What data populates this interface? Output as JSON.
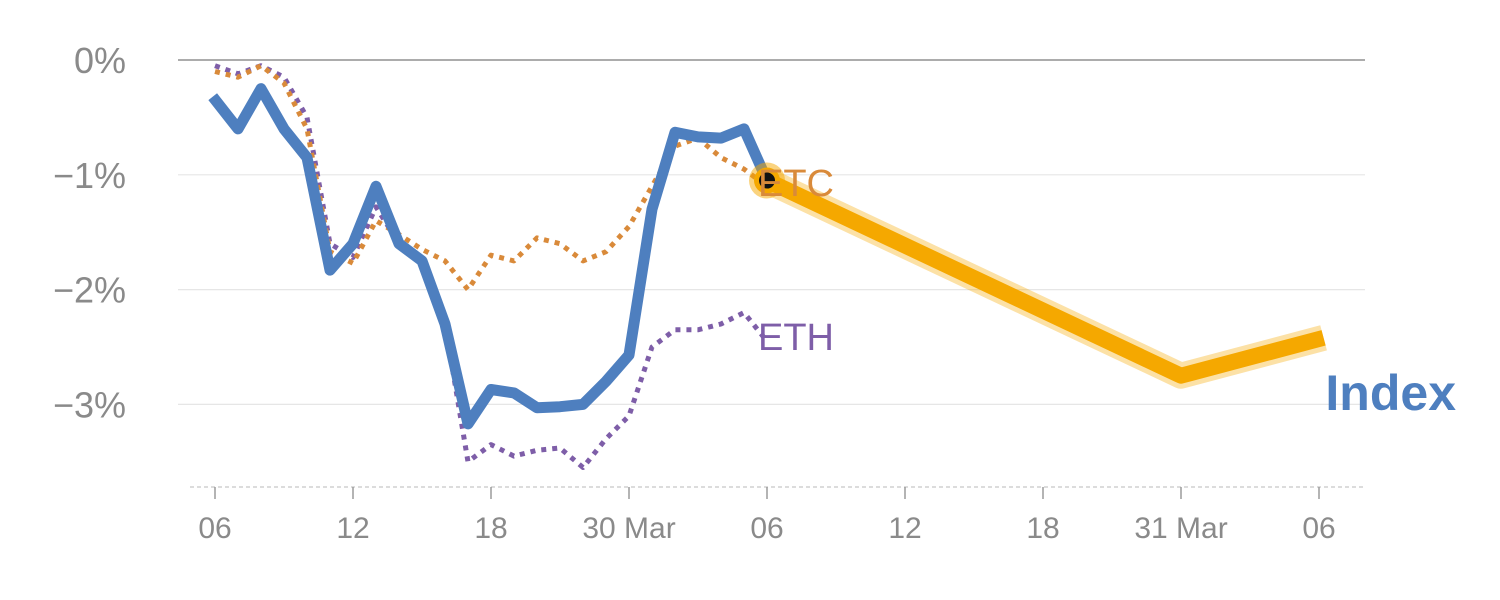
{
  "chart_data": {
    "type": "line",
    "title": "",
    "xlabel": "",
    "ylabel": "",
    "ylim": [
      -3.7,
      0
    ],
    "grid": true,
    "y_ticks": [
      {
        "value": 0,
        "label": "0%"
      },
      {
        "value": -1,
        "label": "−1%"
      },
      {
        "value": -2,
        "label": "−2%"
      },
      {
        "value": -3,
        "label": "−3%"
      }
    ],
    "x_ticks": [
      {
        "x": 0,
        "label": "06"
      },
      {
        "x": 6,
        "label": "12"
      },
      {
        "x": 12,
        "label": "18"
      },
      {
        "x": 18,
        "label": "30 Mar"
      },
      {
        "x": 24,
        "label": "06"
      },
      {
        "x": 30,
        "label": "12"
      },
      {
        "x": 36,
        "label": "18"
      },
      {
        "x": 42,
        "label": "31 Mar"
      },
      {
        "x": 48,
        "label": "06"
      }
    ],
    "series": [
      {
        "name": "Index",
        "color": "#4e7fbf",
        "style": "solid",
        "x": [
          -0.1,
          1,
          2,
          3,
          4,
          5,
          6,
          7,
          8,
          9,
          10,
          11,
          12,
          13,
          14,
          15,
          16,
          17,
          18,
          19,
          20,
          21,
          22,
          23,
          24
        ],
        "values": [
          -0.32,
          -0.6,
          -0.25,
          -0.6,
          -0.85,
          -1.83,
          -1.6,
          -1.1,
          -1.6,
          -1.75,
          -2.3,
          -3.17,
          -2.87,
          -2.9,
          -3.03,
          -3.02,
          -3.0,
          -2.8,
          -2.57,
          -1.3,
          -0.63,
          -0.67,
          -0.68,
          -0.6,
          -1.05
        ]
      },
      {
        "name": "ETC",
        "color": "#d98a3a",
        "style": "dotted",
        "x": [
          0,
          1,
          2,
          3,
          4,
          5,
          6,
          7,
          8,
          9,
          10,
          11,
          12,
          13,
          14,
          15,
          16,
          17,
          18,
          19,
          20,
          21,
          22,
          23,
          24
        ],
        "values": [
          -0.1,
          -0.15,
          -0.05,
          -0.2,
          -0.6,
          -1.67,
          -1.77,
          -1.4,
          -1.52,
          -1.65,
          -1.75,
          -2.0,
          -1.7,
          -1.75,
          -1.55,
          -1.6,
          -1.75,
          -1.67,
          -1.45,
          -1.1,
          -0.75,
          -0.68,
          -0.85,
          -0.95,
          -1.1
        ]
      },
      {
        "name": "ETH",
        "color": "#7e5ea8",
        "style": "dotted",
        "x": [
          0,
          1,
          2,
          3,
          4,
          5,
          6,
          7,
          8,
          9,
          10,
          11,
          12,
          13,
          14,
          15,
          16,
          17,
          18,
          19,
          20,
          21,
          22,
          23,
          24
        ],
        "values": [
          -0.05,
          -0.12,
          -0.05,
          -0.15,
          -0.5,
          -1.6,
          -1.72,
          -1.28,
          -1.6,
          -1.75,
          -2.3,
          -3.5,
          -3.35,
          -3.45,
          -3.4,
          -3.38,
          -3.55,
          -3.3,
          -3.1,
          -2.5,
          -2.35,
          -2.35,
          -2.3,
          -2.2,
          -2.45
        ]
      },
      {
        "name": "Index forecast",
        "color": "#f5a800",
        "style": "solid",
        "x": [
          24,
          42,
          48.2
        ],
        "values": [
          -1.05,
          -2.75,
          -2.42
        ]
      }
    ],
    "labels": {
      "index": "Index",
      "etc": "ETC",
      "eth": "ETH"
    },
    "highlight_point": {
      "x": 24,
      "value": -1.05
    }
  }
}
